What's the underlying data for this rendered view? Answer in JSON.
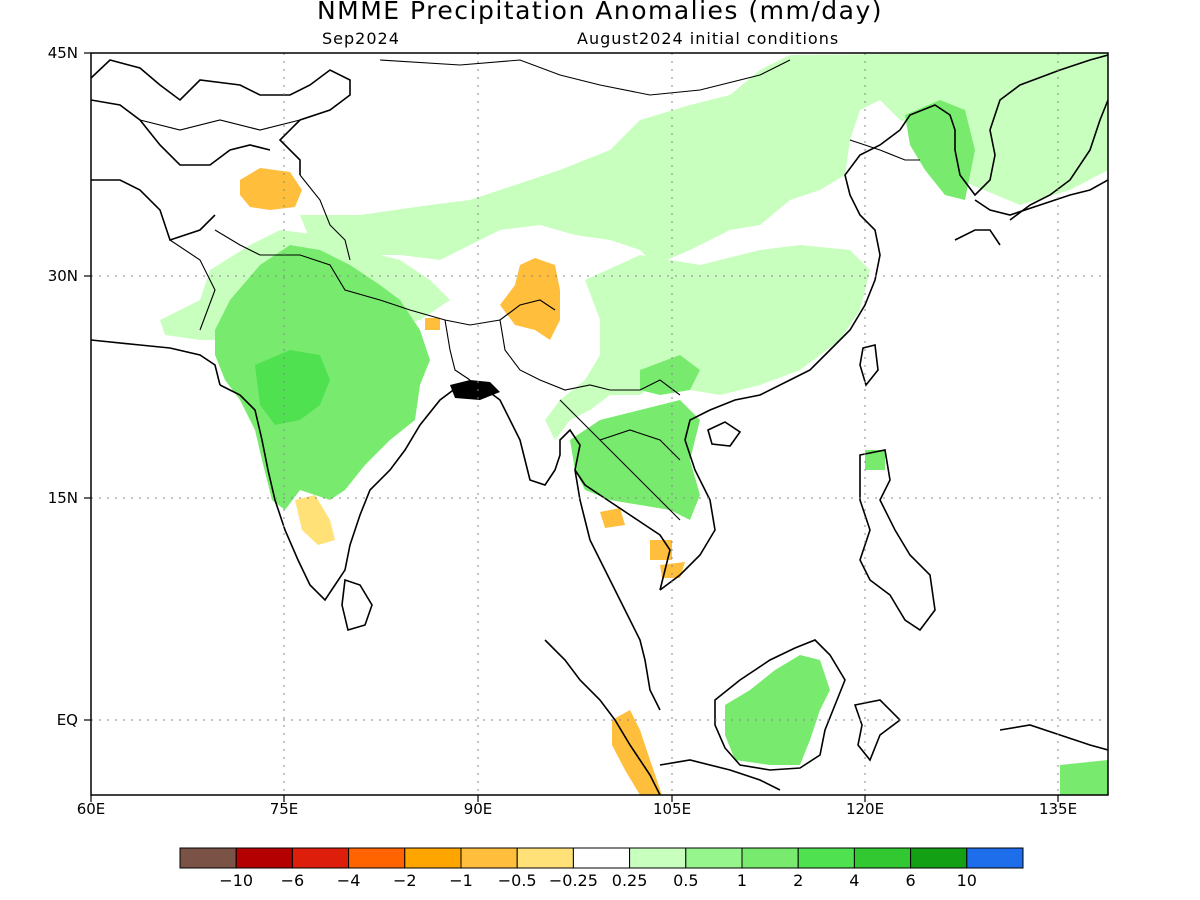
{
  "title": "NMME Precipitation Anomalies (mm/day)",
  "subtitle_left": "Sep2024",
  "subtitle_right": "August2024 initial conditions",
  "lat_labels": [
    "45N",
    "30N",
    "15N",
    "EQ"
  ],
  "lon_labels": [
    "60E",
    "75E",
    "90E",
    "105E",
    "120E",
    "135E"
  ],
  "colorbar": {
    "labels": [
      "−10",
      "−6",
      "−4",
      "−2",
      "−1",
      "−0.5",
      "−0.25",
      "0.25",
      "0.5",
      "1",
      "2",
      "4",
      "6",
      "10"
    ],
    "colors": [
      "#7a5246",
      "#b40000",
      "#dc1e0a",
      "#ff6400",
      "#ffa500",
      "#ffbe3c",
      "#ffe178",
      "#ffffff",
      "#c8ffbe",
      "#96f58c",
      "#78eb6e",
      "#50e150",
      "#32c832",
      "#14a014",
      "#1e6eeb"
    ]
  },
  "regions": [
    {
      "name": "north-china-wet",
      "level": "0.25-0.5",
      "color": "#c8ffbe"
    },
    {
      "name": "south-china-wet",
      "level": "0.25-0.5",
      "color": "#c8ffbe"
    },
    {
      "name": "india-wet",
      "level": "1-2",
      "color": "#78eb6e"
    },
    {
      "name": "central-india-wet",
      "level": "2-4",
      "color": "#50e150"
    },
    {
      "name": "borneo-wet",
      "level": "1-2",
      "color": "#78eb6e"
    },
    {
      "name": "kashmir-dry",
      "level": "-1 to -0.5",
      "color": "#ffbe3c"
    },
    {
      "name": "tibet-dry",
      "level": "-1 to -0.5",
      "color": "#ffbe3c"
    },
    {
      "name": "sumatra-dry",
      "level": "-1 to -0.5",
      "color": "#ffbe3c"
    },
    {
      "name": "south-india-dry",
      "level": "-0.5 to -0.25",
      "color": "#ffe178"
    }
  ]
}
